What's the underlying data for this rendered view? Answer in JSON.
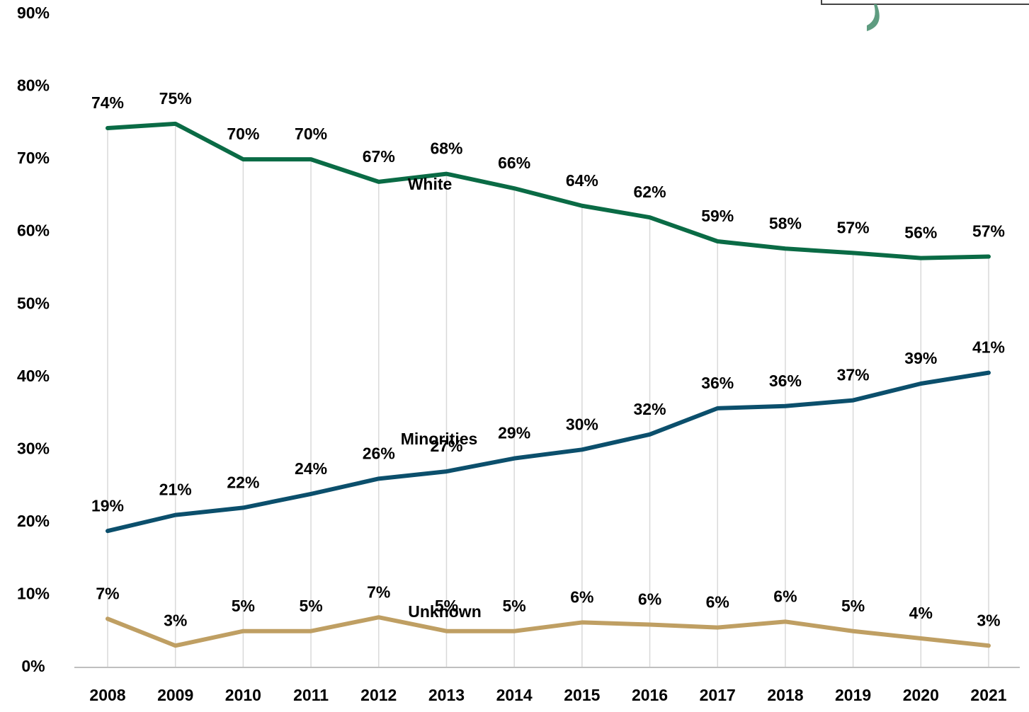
{
  "chart_data": {
    "type": "line",
    "categories": [
      "2008",
      "2009",
      "2010",
      "2011",
      "2012",
      "2013",
      "2014",
      "2015",
      "2016",
      "2017",
      "2018",
      "2019",
      "2020",
      "2021"
    ],
    "series": [
      {
        "name": "White",
        "color": "#0a6b45",
        "values": [
          74.3,
          74.9,
          70,
          70,
          66.9,
          68,
          66,
          63.6,
          62,
          58.7,
          57.7,
          57.1,
          56.4,
          56.6
        ],
        "value_labels": [
          "74%",
          "75%",
          "70%",
          "70%",
          "67%",
          "68%",
          "66%",
          "64%",
          "62%",
          "59%",
          "58%",
          "57%",
          "56%",
          "57%"
        ]
      },
      {
        "name": "Minorities",
        "color": "#0b4f6c",
        "values": [
          18.8,
          21,
          22,
          23.9,
          26,
          27,
          28.8,
          30,
          32.1,
          35.7,
          36,
          36.8,
          39.1,
          40.6
        ],
        "value_labels": [
          "19%",
          "21%",
          "22%",
          "24%",
          "26%",
          "27%",
          "29%",
          "30%",
          "32%",
          "36%",
          "36%",
          "37%",
          "39%",
          "41%"
        ]
      },
      {
        "name": "Unknown",
        "color": "#bf9f63",
        "values": [
          6.7,
          3,
          5,
          5,
          6.9,
          5,
          5,
          6.2,
          5.9,
          5.5,
          6.3,
          5,
          4,
          3
        ],
        "value_labels": [
          "7%",
          "3%",
          "5%",
          "5%",
          "7%",
          "5%",
          "5%",
          "6%",
          "6%",
          "6%",
          "6%",
          "5%",
          "4%",
          "3%"
        ]
      }
    ],
    "ylim": [
      0,
      90
    ],
    "yticks": [
      {
        "value": 0,
        "label": "0%"
      },
      {
        "value": 10,
        "label": "10%"
      },
      {
        "value": 20,
        "label": "20%"
      },
      {
        "value": 30,
        "label": "30%"
      },
      {
        "value": 40,
        "label": "40%"
      },
      {
        "value": 50,
        "label": "50%"
      },
      {
        "value": 60,
        "label": "60%"
      },
      {
        "value": 70,
        "label": "70%"
      },
      {
        "value": 80,
        "label": "80%"
      },
      {
        "value": 90,
        "label": "90%"
      }
    ]
  }
}
